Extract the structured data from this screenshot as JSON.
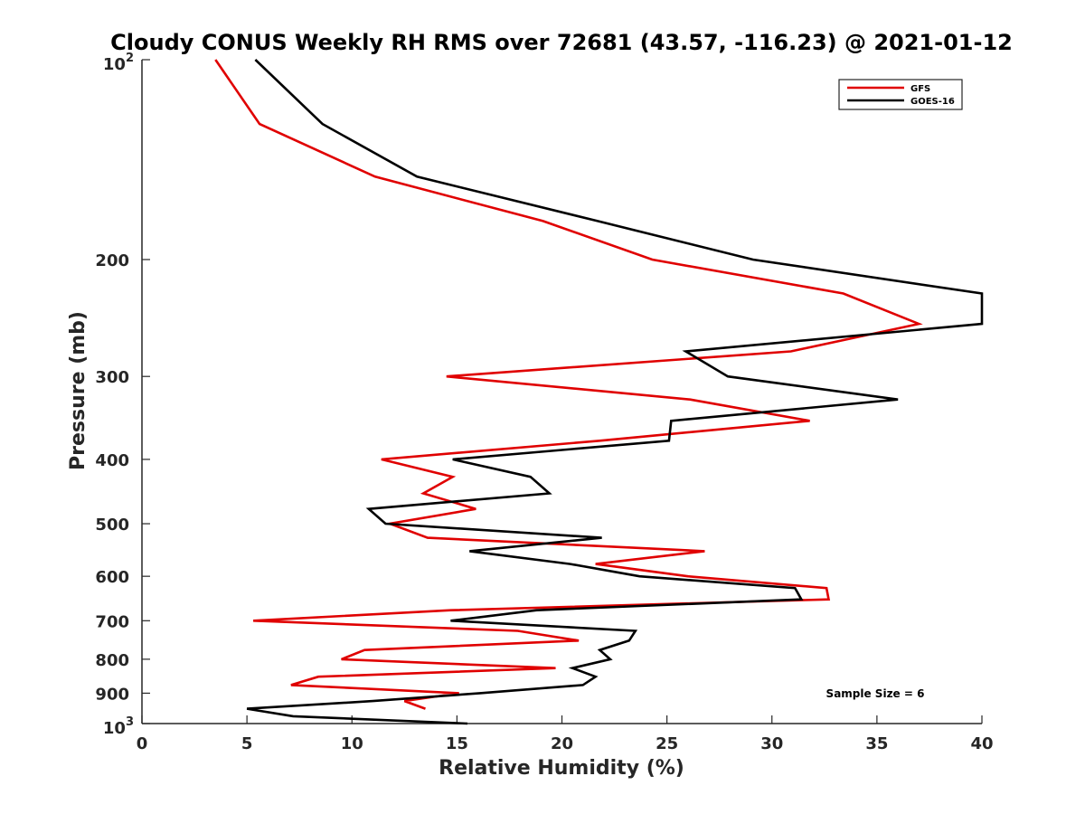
{
  "chart_data": {
    "type": "line",
    "title": "Cloudy CONUS Weekly RH RMS over 72681 (43.57, -116.23) @ 2021-01-12",
    "xlabel": "Relative Humidity (%)",
    "ylabel": "Pressure (mb)",
    "xlim": [
      0,
      40
    ],
    "ylim": [
      100,
      1000
    ],
    "y_scale": "log",
    "y_reversed": true,
    "grid": false,
    "legend_position": "top-right",
    "x_ticks": [
      "0",
      "5",
      "10",
      "15",
      "20",
      "25",
      "30",
      "35",
      "40"
    ],
    "y_ticks": [
      {
        "value": 100,
        "base": "10",
        "exp": "2",
        "label": ""
      },
      {
        "value": 200,
        "label": "200"
      },
      {
        "value": 300,
        "label": "300"
      },
      {
        "value": 400,
        "label": "400"
      },
      {
        "value": 500,
        "label": "500"
      },
      {
        "value": 600,
        "label": "600"
      },
      {
        "value": 700,
        "label": "700"
      },
      {
        "value": 800,
        "label": "800"
      },
      {
        "value": 900,
        "label": "900"
      },
      {
        "value": 1000,
        "base": "10",
        "exp": "3",
        "label": ""
      }
    ],
    "series": [
      {
        "name": "GFS",
        "color": "#e00000",
        "points": [
          [
            3.5,
            100
          ],
          [
            5.6,
            125
          ],
          [
            11.1,
            150
          ],
          [
            19.1,
            175
          ],
          [
            24.3,
            200
          ],
          [
            33.4,
            225
          ],
          [
            37.0,
            250
          ],
          [
            30.9,
            275
          ],
          [
            14.5,
            300
          ],
          [
            26.1,
            325
          ],
          [
            31.8,
            350
          ],
          [
            21.8,
            375
          ],
          [
            11.4,
            400
          ],
          [
            14.8,
            425
          ],
          [
            13.4,
            450
          ],
          [
            15.9,
            475
          ],
          [
            11.8,
            500
          ],
          [
            13.6,
            525
          ],
          [
            26.8,
            550
          ],
          [
            21.6,
            575
          ],
          [
            26.0,
            600
          ],
          [
            32.6,
            625
          ],
          [
            32.7,
            650
          ],
          [
            14.7,
            675
          ],
          [
            5.3,
            700
          ],
          [
            17.9,
            725
          ],
          [
            20.8,
            750
          ],
          [
            10.6,
            775
          ],
          [
            9.5,
            800
          ],
          [
            19.7,
            825
          ],
          [
            8.4,
            850
          ],
          [
            7.1,
            875
          ],
          [
            15.1,
            900
          ],
          [
            12.5,
            925
          ],
          [
            13.5,
            950
          ]
        ]
      },
      {
        "name": "GOES-16",
        "color": "#000000",
        "points": [
          [
            5.4,
            100
          ],
          [
            8.6,
            125
          ],
          [
            13.1,
            150
          ],
          [
            21.7,
            175
          ],
          [
            29.1,
            200
          ],
          [
            40.0,
            225
          ],
          [
            40.0,
            250
          ],
          [
            25.9,
            275
          ],
          [
            27.9,
            300
          ],
          [
            36.0,
            325
          ],
          [
            25.2,
            350
          ],
          [
            25.1,
            375
          ],
          [
            14.8,
            400
          ],
          [
            18.5,
            425
          ],
          [
            19.4,
            450
          ],
          [
            10.8,
            475
          ],
          [
            11.6,
            500
          ],
          [
            21.9,
            525
          ],
          [
            15.6,
            550
          ],
          [
            20.4,
            575
          ],
          [
            23.7,
            600
          ],
          [
            31.1,
            625
          ],
          [
            31.4,
            650
          ],
          [
            18.8,
            675
          ],
          [
            14.7,
            700
          ],
          [
            23.5,
            725
          ],
          [
            23.2,
            750
          ],
          [
            21.8,
            775
          ],
          [
            22.3,
            800
          ],
          [
            20.5,
            825
          ],
          [
            21.6,
            850
          ],
          [
            21.0,
            875
          ],
          [
            16.1,
            900
          ],
          [
            11.0,
            925
          ],
          [
            5.0,
            950
          ],
          [
            7.2,
            975
          ],
          [
            15.5,
            1000
          ]
        ]
      }
    ],
    "annotation": "Sample Size = 6"
  }
}
